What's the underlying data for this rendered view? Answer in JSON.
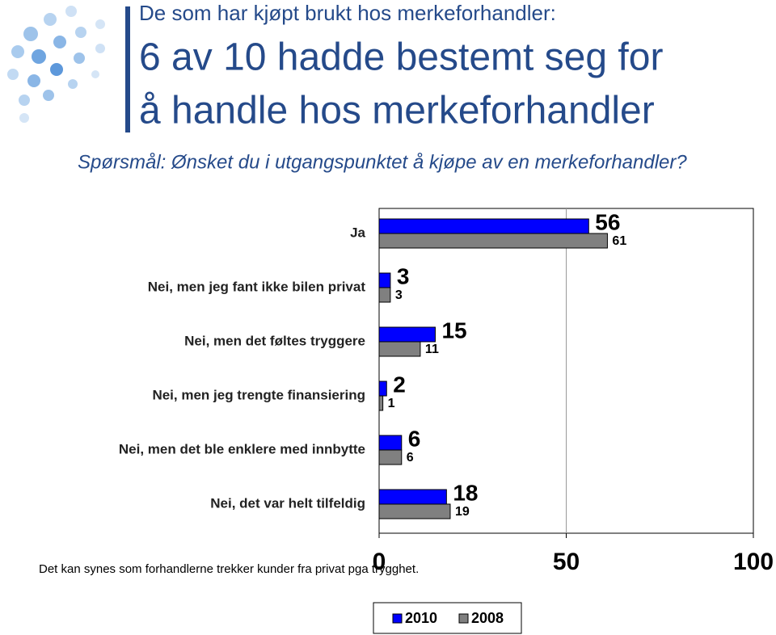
{
  "chart_data": {
    "type": "bar",
    "orientation": "horizontal",
    "header": "De som har kjøpt brukt hos merkeforhandler:",
    "title_lines": [
      "6 av 10 hadde bestemt seg for",
      "å handle hos merkeforhandler"
    ],
    "question": "Spørsmål: Ønsket du i utgangspunktet å kjøpe av en merkeforhandler?",
    "categories": [
      "Ja",
      "Nei, men jeg fant ikke bilen privat",
      "Nei, men det føltes tryggere",
      "Nei, men jeg trengte finansiering",
      "Nei, men det ble enklere med innbytte",
      "Nei, det var helt tilfeldig"
    ],
    "series": [
      {
        "name": "2010",
        "color": "#0000ff",
        "values": [
          56,
          3,
          15,
          2,
          6,
          18
        ]
      },
      {
        "name": "2008",
        "color": "#808080",
        "values": [
          61,
          3,
          11,
          1,
          6,
          19
        ]
      }
    ],
    "xlim": [
      0,
      100
    ],
    "xticks": [
      0,
      50,
      100
    ],
    "grid": true,
    "legend": "bottom",
    "footnote": "Det kan synes som forhandlerne trekker kunder fra privat pga trygghet."
  }
}
